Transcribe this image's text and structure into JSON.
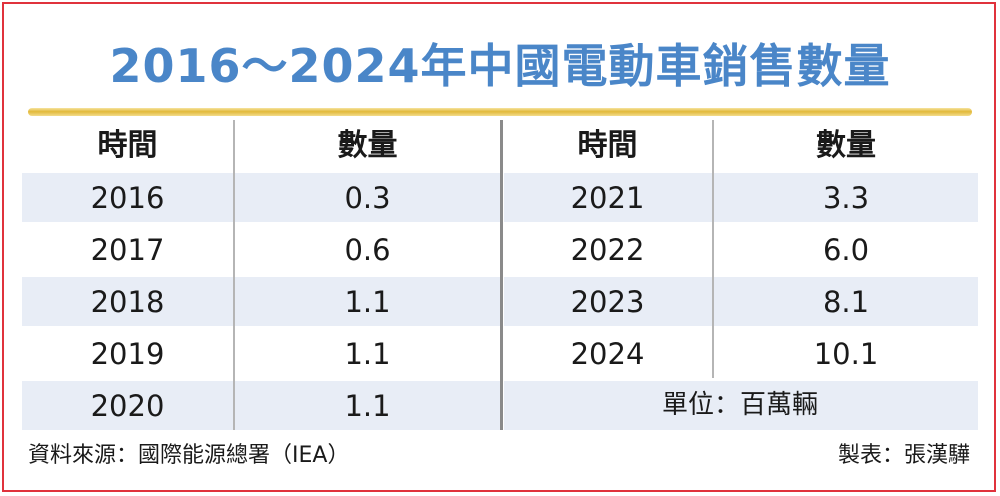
{
  "title": "2016～2024年中國電動車銷售數量",
  "headers": {
    "year": "時間",
    "qty": "數量"
  },
  "left_rows": [
    {
      "year": "2016",
      "value": "0.3"
    },
    {
      "year": "2017",
      "value": "0.6"
    },
    {
      "year": "2018",
      "value": "1.1"
    },
    {
      "year": "2019",
      "value": "1.1"
    },
    {
      "year": "2020",
      "value": "1.1"
    }
  ],
  "right_rows": [
    {
      "year": "2021",
      "value": "3.3"
    },
    {
      "year": "2022",
      "value": "6.0"
    },
    {
      "year": "2023",
      "value": "8.1"
    },
    {
      "year": "2024",
      "value": "10.1"
    }
  ],
  "unit": "單位：百萬輛",
  "source": "資料來源：國際能源總署（IEA）",
  "maker": "製表：張漢驊",
  "colors": {
    "title": "#4a86c8",
    "stripe": "#e8edf6",
    "border": "#e0323c",
    "gold": "#e2b93a"
  },
  "chart_data": {
    "type": "table",
    "title": "2016～2024年中國電動車銷售數量",
    "columns": [
      "時間",
      "數量"
    ],
    "unit": "單位：百萬輛",
    "categories": [
      "2016",
      "2017",
      "2018",
      "2019",
      "2020",
      "2021",
      "2022",
      "2023",
      "2024"
    ],
    "values": [
      0.3,
      0.6,
      1.1,
      1.1,
      1.1,
      3.3,
      6.0,
      8.1,
      10.1
    ]
  }
}
